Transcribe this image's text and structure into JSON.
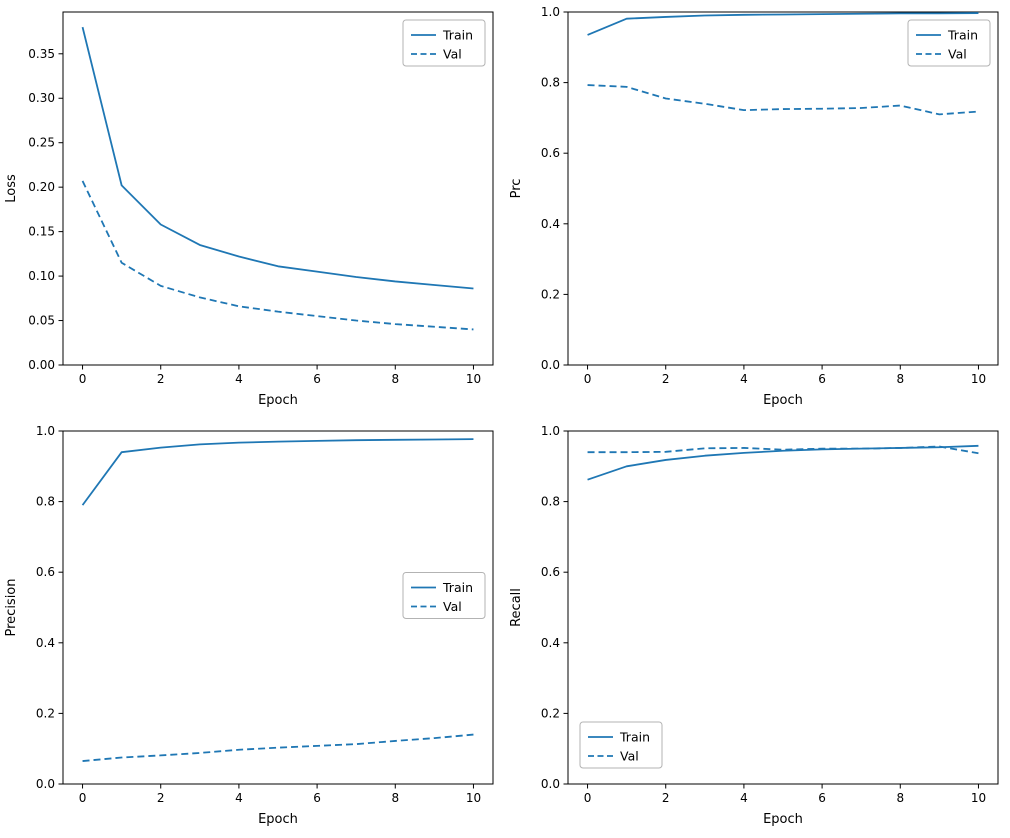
{
  "figure": {
    "background": "#ffffff",
    "accent_color": "#1f77b4",
    "legend_border_color": "#b3b3b3",
    "axis_color": "#000000"
  },
  "chart_data": [
    {
      "id": "loss",
      "type": "line",
      "title": "",
      "xlabel": "Epoch",
      "ylabel": "Loss",
      "x": [
        0,
        1,
        2,
        3,
        4,
        5,
        6,
        7,
        8,
        9,
        10
      ],
      "series": [
        {
          "name": "Train",
          "style": "solid",
          "values": [
            0.38,
            0.202,
            0.158,
            0.135,
            0.122,
            0.111,
            0.105,
            0.099,
            0.094,
            0.09,
            0.086
          ]
        },
        {
          "name": "Val",
          "style": "dashed",
          "values": [
            0.207,
            0.115,
            0.089,
            0.076,
            0.066,
            0.06,
            0.055,
            0.05,
            0.046,
            0.043,
            0.04
          ]
        }
      ],
      "xlim": [
        -0.5,
        10.5
      ],
      "ylim": [
        0,
        0.397
      ],
      "xticks": [
        "0",
        "2",
        "4",
        "6",
        "8",
        "10"
      ],
      "yticks": [
        "0.00",
        "0.05",
        "0.10",
        "0.15",
        "0.20",
        "0.25",
        "0.30",
        "0.35"
      ],
      "legend": "upper right",
      "grid": false,
      "color": "#1f77b4"
    },
    {
      "id": "prc",
      "type": "line",
      "title": "",
      "xlabel": "Epoch",
      "ylabel": "Prc",
      "x": [
        0,
        1,
        2,
        3,
        4,
        5,
        6,
        7,
        8,
        9,
        10
      ],
      "series": [
        {
          "name": "Train",
          "style": "solid",
          "values": [
            0.935,
            0.981,
            0.986,
            0.99,
            0.992,
            0.993,
            0.994,
            0.995,
            0.996,
            0.996,
            0.997
          ]
        },
        {
          "name": "Val",
          "style": "dashed",
          "values": [
            0.793,
            0.788,
            0.755,
            0.74,
            0.722,
            0.725,
            0.726,
            0.728,
            0.735,
            0.71,
            0.718
          ]
        }
      ],
      "xlim": [
        -0.5,
        10.5
      ],
      "ylim": [
        0,
        1.0
      ],
      "xticks": [
        "0",
        "2",
        "4",
        "6",
        "8",
        "10"
      ],
      "yticks": [
        "0.0",
        "0.2",
        "0.4",
        "0.6",
        "0.8",
        "1.0"
      ],
      "legend": "upper right",
      "grid": false,
      "color": "#1f77b4"
    },
    {
      "id": "precision",
      "type": "line",
      "title": "",
      "xlabel": "Epoch",
      "ylabel": "Precision",
      "x": [
        0,
        1,
        2,
        3,
        4,
        5,
        6,
        7,
        8,
        9,
        10
      ],
      "series": [
        {
          "name": "Train",
          "style": "solid",
          "values": [
            0.79,
            0.94,
            0.953,
            0.962,
            0.967,
            0.97,
            0.972,
            0.974,
            0.975,
            0.976,
            0.977
          ]
        },
        {
          "name": "Val",
          "style": "dashed",
          "values": [
            0.065,
            0.075,
            0.081,
            0.088,
            0.097,
            0.103,
            0.108,
            0.113,
            0.122,
            0.13,
            0.14
          ]
        }
      ],
      "xlim": [
        -0.5,
        10.5
      ],
      "ylim": [
        0,
        1.0
      ],
      "xticks": [
        "0",
        "2",
        "4",
        "6",
        "8",
        "10"
      ],
      "yticks": [
        "0.0",
        "0.2",
        "0.4",
        "0.6",
        "0.8",
        "1.0"
      ],
      "legend": "center right",
      "grid": false,
      "color": "#1f77b4"
    },
    {
      "id": "recall",
      "type": "line",
      "title": "",
      "xlabel": "Epoch",
      "ylabel": "Recall",
      "x": [
        0,
        1,
        2,
        3,
        4,
        5,
        6,
        7,
        8,
        9,
        10
      ],
      "series": [
        {
          "name": "Train",
          "style": "solid",
          "values": [
            0.862,
            0.9,
            0.918,
            0.93,
            0.938,
            0.944,
            0.948,
            0.95,
            0.952,
            0.954,
            0.958
          ]
        },
        {
          "name": "Val",
          "style": "dashed",
          "values": [
            0.94,
            0.94,
            0.941,
            0.951,
            0.952,
            0.947,
            0.95,
            0.95,
            0.952,
            0.956,
            0.937
          ]
        }
      ],
      "xlim": [
        -0.5,
        10.5
      ],
      "ylim": [
        0,
        1.0
      ],
      "xticks": [
        "0",
        "2",
        "4",
        "6",
        "8",
        "10"
      ],
      "yticks": [
        "0.0",
        "0.2",
        "0.4",
        "0.6",
        "0.8",
        "1.0"
      ],
      "legend": "lower left",
      "grid": false,
      "color": "#1f77b4"
    }
  ]
}
